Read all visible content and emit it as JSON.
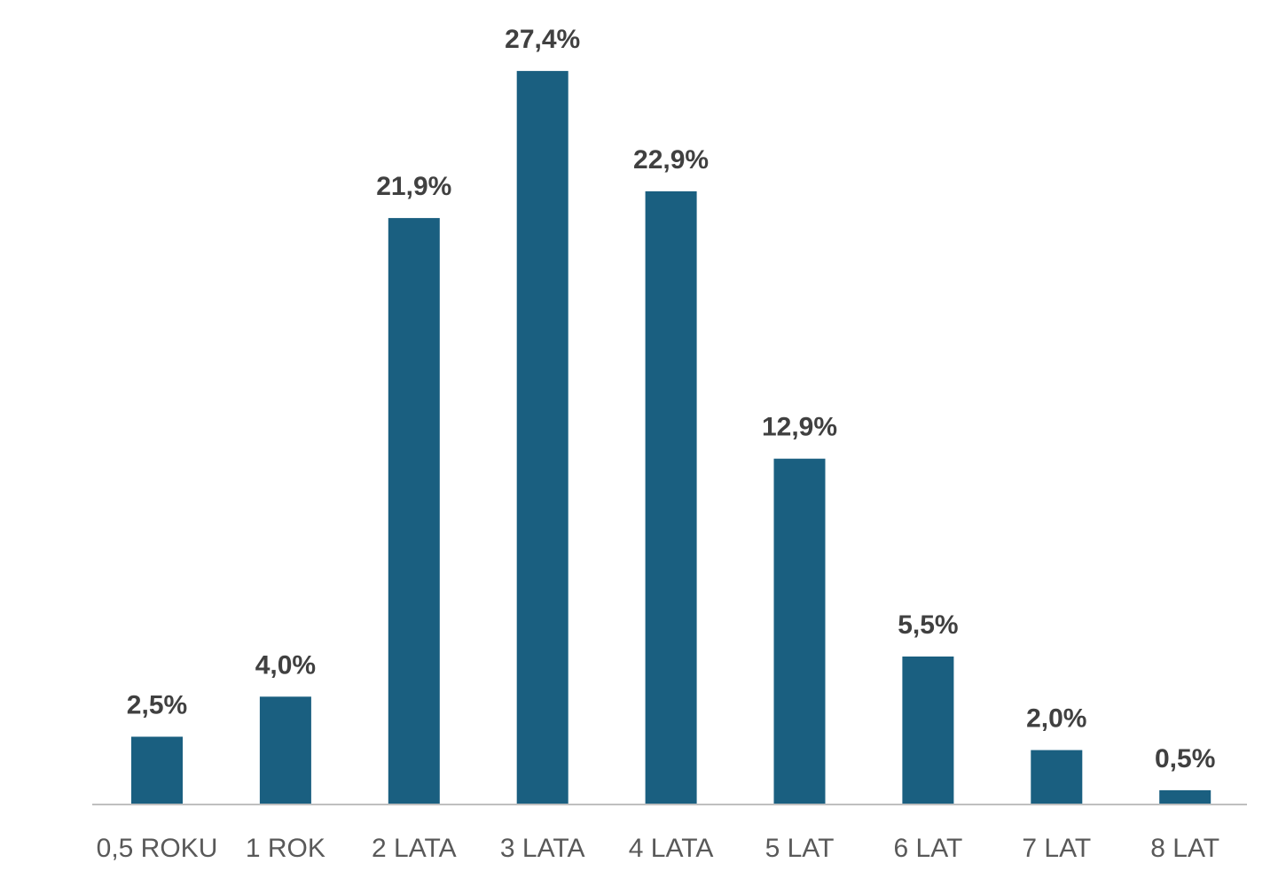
{
  "chart_data": {
    "type": "bar",
    "categories": [
      "0,5 ROKU",
      "1 ROK",
      "2 LATA",
      "3 LATA",
      "4 LATA",
      "5 LAT",
      "6 LAT",
      "7 LAT",
      "8 LAT"
    ],
    "values": [
      2.5,
      4.0,
      21.9,
      27.4,
      22.9,
      12.9,
      5.5,
      2.0,
      0.5
    ],
    "data_labels": [
      "2,5%",
      "4,0%",
      "21,9%",
      "27,4%",
      "22,9%",
      "12,9%",
      "5,5%",
      "2,0%",
      "0,5%"
    ],
    "title": "",
    "xlabel": "",
    "ylabel": "",
    "ylim": [
      0,
      30
    ],
    "grid": false,
    "legend": "none",
    "colors": {
      "bar": "#1a5f80",
      "axis": "#bfbfbf",
      "data_label": "#404040",
      "category_label": "#595959"
    }
  }
}
